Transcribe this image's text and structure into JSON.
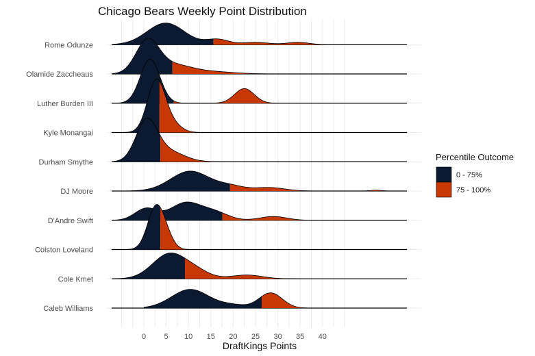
{
  "chart_data": {
    "type": "ridgeline",
    "title": "Chicago Bears Weekly Point Distribution",
    "xlabel": "DraftKings Points",
    "ylabel": "",
    "x_ticks": [
      0,
      5,
      10,
      15,
      20,
      25,
      30,
      35,
      40
    ],
    "x_gridlines": [
      -5,
      -2.5,
      0,
      2.5,
      5,
      7.5,
      10,
      12.5,
      15,
      17.5,
      20,
      22.5,
      25,
      27.5,
      30,
      32.5,
      35,
      37.5,
      40,
      42.5,
      45
    ],
    "xlim": [
      -7,
      60
    ],
    "grid": true,
    "legend": {
      "title": "Percentile Outcome",
      "position": "right",
      "entries": [
        {
          "label": "0 - 75%",
          "color": "#0b1a30"
        },
        {
          "label": "75 - 100%",
          "color": "#c83803"
        }
      ]
    },
    "series": [
      {
        "name": "Rome Odunze",
        "p75": 15.6,
        "range": [
          -7,
          41
        ],
        "components": [
          {
            "mean": 4.9,
            "sd": 4.2,
            "height": 0.74
          },
          {
            "mean": 16.5,
            "sd": 2.5,
            "height": 0.18
          },
          {
            "mean": 25,
            "sd": 3,
            "height": 0.08
          },
          {
            "mean": 34.5,
            "sd": 2.5,
            "height": 0.08
          }
        ]
      },
      {
        "name": "Olamide Zaccheaus",
        "p75": 6.4,
        "range": [
          -7,
          30
        ],
        "components": [
          {
            "mean": 0.8,
            "sd": 2.6,
            "height": 1.1
          },
          {
            "mean": 6.5,
            "sd": 4,
            "height": 0.3
          },
          {
            "mean": 15,
            "sd": 5,
            "height": 0.08
          }
        ]
      },
      {
        "name": "Luther Burden III",
        "p75": 6.7,
        "range": [
          -7,
          30
        ],
        "components": [
          {
            "mean": 1.4,
            "sd": 2.2,
            "height": 1.5
          },
          {
            "mean": 22.5,
            "sd": 2.2,
            "height": 0.5
          }
        ]
      },
      {
        "name": "Kyle Monangai",
        "p75": 3.5,
        "range": [
          -7,
          15
        ],
        "components": [
          {
            "mean": 2.8,
            "sd": 2.0,
            "height": 1.78
          },
          {
            "mean": 6.5,
            "sd": 2.0,
            "height": 0.25
          }
        ]
      },
      {
        "name": "Durham Smythe",
        "p75": 3.7,
        "range": [
          -7,
          17
        ],
        "components": [
          {
            "mean": 0.6,
            "sd": 2.4,
            "height": 1.35
          },
          {
            "mean": 5.5,
            "sd": 3.5,
            "height": 0.35
          }
        ]
      },
      {
        "name": "DJ Moore",
        "p75": 19.3,
        "range": [
          -3,
          55
        ],
        "components": [
          {
            "mean": 10.4,
            "sd": 4.4,
            "height": 0.68
          },
          {
            "mean": 19.5,
            "sd": 3,
            "height": 0.15
          },
          {
            "mean": 28,
            "sd": 3.5,
            "height": 0.12
          },
          {
            "mean": 52,
            "sd": 1.2,
            "height": 0.03
          }
        ]
      },
      {
        "name": "D'Andre Swift",
        "p75": 17.6,
        "range": [
          -7,
          36
        ],
        "components": [
          {
            "mean": 0.5,
            "sd": 2.5,
            "height": 0.4
          },
          {
            "mean": 9.4,
            "sd": 3.5,
            "height": 0.6
          },
          {
            "mean": 16,
            "sd": 3,
            "height": 0.25
          },
          {
            "mean": 29,
            "sd": 3,
            "height": 0.13
          }
        ]
      },
      {
        "name": "Colston Loveland",
        "p75": 3.7,
        "range": [
          -7,
          13
        ],
        "components": [
          {
            "mean": 2.8,
            "sd": 1.9,
            "height": 1.5
          },
          {
            "mean": 5.5,
            "sd": 1.5,
            "height": 0.2
          }
        ]
      },
      {
        "name": "Cole Kmet",
        "p75": 9.2,
        "range": [
          -7,
          35
        ],
        "components": [
          {
            "mean": 5.8,
            "sd": 3.8,
            "height": 0.86
          },
          {
            "mean": 12,
            "sd": 3,
            "height": 0.2
          },
          {
            "mean": 23,
            "sd": 3.5,
            "height": 0.13
          }
        ]
      },
      {
        "name": "Caleb Williams",
        "p75": 26.4,
        "range": [
          0,
          38
        ],
        "components": [
          {
            "mean": 10.4,
            "sd": 4.2,
            "height": 0.64
          },
          {
            "mean": 28.4,
            "sd": 2.6,
            "height": 0.52
          },
          {
            "mean": 20,
            "sd": 3,
            "height": 0.1
          }
        ]
      }
    ]
  }
}
